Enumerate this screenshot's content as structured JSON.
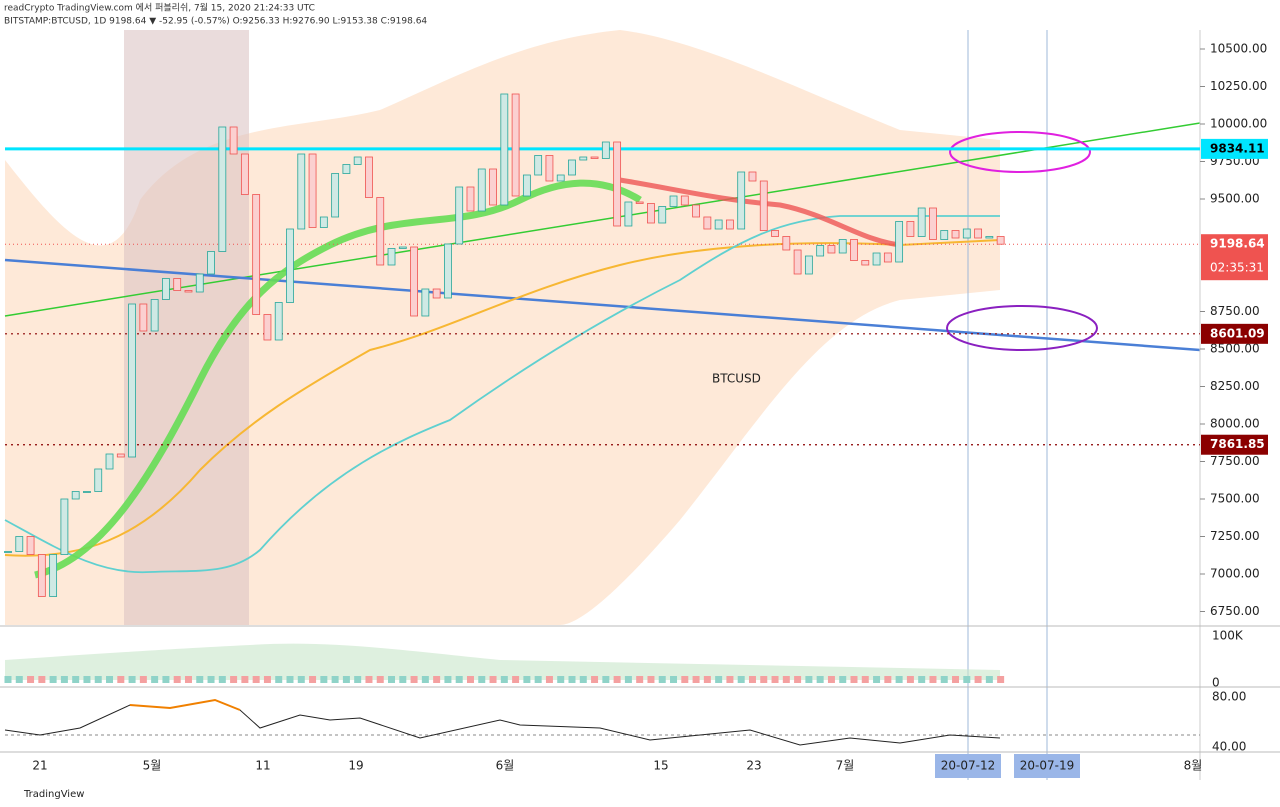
{
  "header": {
    "line1": "readCrypto TradingView.com 에서 퍼블리쉬, 7월 15, 2020 21:24:33 UTC",
    "line2": "BITSTAMP:BTCUSD, 1D 9198.64 ▼ -52.95 (-0.57%) O:9256.33 H:9276.90 L:9153.38 C:9198.64"
  },
  "chart_data": {
    "type": "candlestick",
    "symbol": "BTCUSD",
    "close": [
      7150,
      7250,
      7130,
      6850,
      7130,
      7500,
      7550,
      7550,
      7700,
      7800,
      7780,
      8800,
      8620,
      8830,
      8970,
      8890,
      8880,
      9000,
      9150,
      9980,
      9800,
      9530,
      8730,
      8560,
      8810,
      9300,
      9800,
      9310,
      9380,
      9670,
      9730,
      9780,
      9510,
      9060,
      9170,
      9180,
      8720,
      8900,
      8840,
      9200,
      9580,
      9420,
      9700,
      9460,
      10200,
      9520,
      9660,
      9790,
      9620,
      9660,
      9760,
      9780,
      9770,
      9880,
      9320,
      9480,
      9470,
      9340,
      9450,
      9520,
      9460,
      9380,
      9300,
      9360,
      9300,
      9680,
      9620,
      9290,
      9250,
      9160,
      9000,
      9120,
      9190,
      9140,
      9230,
      9090,
      9060,
      9140,
      9080,
      9350,
      9250,
      9440,
      9230,
      9290,
      9240,
      9300,
      9240,
      9250,
      9198.64
    ],
    "ylim": [
      6750,
      10500
    ],
    "yticks": [
      {
        "value": 6750,
        "label": "6750.00"
      },
      {
        "value": 7000,
        "label": "7000.00"
      },
      {
        "value": 7250,
        "label": "7250.00"
      },
      {
        "value": 7500,
        "label": "7500.00"
      },
      {
        "value": 7750,
        "label": "7750.00"
      },
      {
        "value": 8000,
        "label": "8000.00"
      },
      {
        "value": 8250,
        "label": "8250.00"
      },
      {
        "value": 8500,
        "label": "8500.00"
      },
      {
        "value": 8750,
        "label": "8750.00"
      },
      {
        "value": 9500,
        "label": "9500.00"
      },
      {
        "value": 9750,
        "label": "9750.00"
      },
      {
        "value": 10000,
        "label": "10000.00"
      },
      {
        "value": 10250,
        "label": "10250.00"
      },
      {
        "value": 10500,
        "label": "10500.00"
      }
    ],
    "hlines": [
      {
        "value": 9834.11,
        "label": "9834.11",
        "color": "#00e5ff"
      },
      {
        "value": 8601.09,
        "label": "8601.09",
        "color": "#8b0000"
      },
      {
        "value": 7861.85,
        "label": "7861.85",
        "color": "#8b0000"
      }
    ],
    "last_price": {
      "value": 9198.64,
      "label": "9198.64",
      "countdown": "02:35:31"
    },
    "xlabels": [
      "21",
      "5월",
      "11",
      "19",
      "6월",
      "15",
      "23",
      "7월",
      "20-07-12",
      "20-07-19",
      "8월"
    ],
    "volume_ticks": [
      "100K",
      "0"
    ],
    "osc_ticks": [
      "80.00",
      "40.00"
    ],
    "up_color": "#26a69a",
    "down_color": "#ef5350"
  },
  "footer": "TradingView"
}
